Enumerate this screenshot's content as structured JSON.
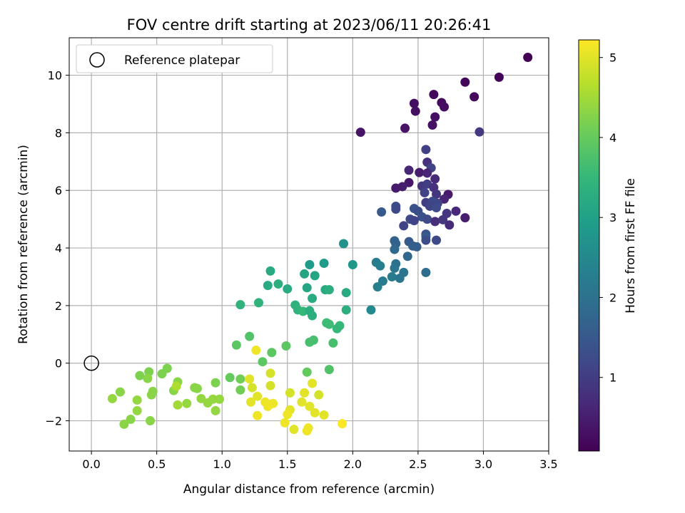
{
  "chart_data": {
    "type": "scatter",
    "title": "FOV centre drift starting at 2023/06/11 20:26:41",
    "xlabel": "Angular distance from reference (arcmin)",
    "ylabel": "Rotation from reference (arcmin)",
    "xlim": [
      -0.17,
      3.5
    ],
    "ylim": [
      -3.05,
      11.3
    ],
    "xticks": [
      0.0,
      0.5,
      1.0,
      1.5,
      2.0,
      2.5,
      3.0,
      3.5
    ],
    "xtick_labels": [
      "0.0",
      "0.5",
      "1.0",
      "1.5",
      "2.0",
      "2.5",
      "3.0",
      "3.5"
    ],
    "yticks": [
      -2,
      0,
      2,
      4,
      6,
      8,
      10
    ],
    "ytick_labels": [
      "−2",
      "0",
      "2",
      "4",
      "6",
      "8",
      "10"
    ],
    "grid": true,
    "legend": {
      "placement": "top-left",
      "entries": [
        "Reference platepar"
      ]
    },
    "reference_point": {
      "x": 0.0,
      "y": 0.0,
      "label": "Reference platepar"
    },
    "colorbar": {
      "label": "Hours from first FF file",
      "colormap": "viridis",
      "range": [
        0.08,
        5.22
      ],
      "ticks": [
        1,
        2,
        3,
        4,
        5
      ],
      "tick_labels": [
        "1",
        "2",
        "3",
        "4",
        "5"
      ]
    },
    "points": [
      [
        3.34,
        10.62,
        0.1
      ],
      [
        3.12,
        9.93,
        0.12
      ],
      [
        2.86,
        9.76,
        0.15
      ],
      [
        2.93,
        9.25,
        0.18
      ],
      [
        2.62,
        9.33,
        0.2
      ],
      [
        2.68,
        9.05,
        0.22
      ],
      [
        2.7,
        8.9,
        0.25
      ],
      [
        2.47,
        9.02,
        0.26
      ],
      [
        2.48,
        8.75,
        0.28
      ],
      [
        2.63,
        8.55,
        0.3
      ],
      [
        2.61,
        8.27,
        0.32
      ],
      [
        2.4,
        8.16,
        0.35
      ],
      [
        2.06,
        8.02,
        0.37
      ],
      [
        2.97,
        8.03,
        0.95
      ],
      [
        2.56,
        7.42,
        1.05
      ],
      [
        2.57,
        6.98,
        0.8
      ],
      [
        2.6,
        6.78,
        1.1
      ],
      [
        2.43,
        6.7,
        0.6
      ],
      [
        2.51,
        6.62,
        0.5
      ],
      [
        2.57,
        6.6,
        0.6
      ],
      [
        2.63,
        6.4,
        0.7
      ],
      [
        2.43,
        6.27,
        0.4
      ],
      [
        2.38,
        6.13,
        0.5
      ],
      [
        2.33,
        6.08,
        0.45
      ],
      [
        2.53,
        6.15,
        0.9
      ],
      [
        2.57,
        6.22,
        1.0
      ],
      [
        2.62,
        6.1,
        0.8
      ],
      [
        2.55,
        5.92,
        1.1
      ],
      [
        2.64,
        5.87,
        0.9
      ],
      [
        2.73,
        5.86,
        0.45
      ],
      [
        2.7,
        5.7,
        0.6
      ],
      [
        2.56,
        5.58,
        1.0
      ],
      [
        2.61,
        5.62,
        1.2
      ],
      [
        2.65,
        5.55,
        1.15
      ],
      [
        2.59,
        5.45,
        1.1
      ],
      [
        2.64,
        5.4,
        1.25
      ],
      [
        2.33,
        5.45,
        1.3
      ],
      [
        2.33,
        5.35,
        1.2
      ],
      [
        2.47,
        5.37,
        1.4
      ],
      [
        2.5,
        5.28,
        1.3
      ],
      [
        2.22,
        5.25,
        1.5
      ],
      [
        2.44,
        5.0,
        1.2
      ],
      [
        2.53,
        5.08,
        1.35
      ],
      [
        2.57,
        5.0,
        1.25
      ],
      [
        2.47,
        4.95,
        1.1
      ],
      [
        2.63,
        4.92,
        0.75
      ],
      [
        2.72,
        5.2,
        0.9
      ],
      [
        2.79,
        5.28,
        0.65
      ],
      [
        2.86,
        5.05,
        0.5
      ],
      [
        2.69,
        4.98,
        0.9
      ],
      [
        2.74,
        4.8,
        0.7
      ],
      [
        2.39,
        4.77,
        1.1
      ],
      [
        2.56,
        4.48,
        1.4
      ],
      [
        2.56,
        4.4,
        1.55
      ],
      [
        2.56,
        4.27,
        1.3
      ],
      [
        2.64,
        4.27,
        1.2
      ],
      [
        2.43,
        4.22,
        1.5
      ],
      [
        2.32,
        4.25,
        1.7
      ],
      [
        2.33,
        4.15,
        1.7
      ],
      [
        2.46,
        4.07,
        1.6
      ],
      [
        2.49,
        4.04,
        1.6
      ],
      [
        2.32,
        3.95,
        1.8
      ],
      [
        2.42,
        3.71,
        1.8
      ],
      [
        2.33,
        3.45,
        2.0
      ],
      [
        2.32,
        3.3,
        2.1
      ],
      [
        2.18,
        3.5,
        2.2
      ],
      [
        2.21,
        3.38,
        2.3
      ],
      [
        2.39,
        3.15,
        2.1
      ],
      [
        2.56,
        3.15,
        1.9
      ],
      [
        2.3,
        3.0,
        2.2
      ],
      [
        2.36,
        2.95,
        2.1
      ],
      [
        2.23,
        2.85,
        2.2
      ],
      [
        2.19,
        2.65,
        2.3
      ],
      [
        2.14,
        1.85,
        2.5
      ],
      [
        1.93,
        4.15,
        2.7
      ],
      [
        2.0,
        3.42,
        2.8
      ],
      [
        1.78,
        3.47,
        2.9
      ],
      [
        1.67,
        3.42,
        2.9
      ],
      [
        1.63,
        3.1,
        3.1
      ],
      [
        1.71,
        3.04,
        3.1
      ],
      [
        1.37,
        3.2,
        3.2
      ],
      [
        1.35,
        2.7,
        3.2
      ],
      [
        1.43,
        2.75,
        3.3
      ],
      [
        1.65,
        2.62,
        3.1
      ],
      [
        1.5,
        2.58,
        3.2
      ],
      [
        1.79,
        2.55,
        3.2
      ],
      [
        1.82,
        2.55,
        3.3
      ],
      [
        1.95,
        2.45,
        3.2
      ],
      [
        1.69,
        2.25,
        3.2
      ],
      [
        1.14,
        2.03,
        3.4
      ],
      [
        1.28,
        2.1,
        3.4
      ],
      [
        1.56,
        2.02,
        3.4
      ],
      [
        1.58,
        1.85,
        3.4
      ],
      [
        1.62,
        1.8,
        3.5
      ],
      [
        1.67,
        1.82,
        3.3
      ],
      [
        1.69,
        1.65,
        3.3
      ],
      [
        1.95,
        1.85,
        3.3
      ],
      [
        1.8,
        1.4,
        3.6
      ],
      [
        1.82,
        1.35,
        3.6
      ],
      [
        1.88,
        1.2,
        3.5
      ],
      [
        1.9,
        1.3,
        3.5
      ],
      [
        1.21,
        0.93,
        3.8
      ],
      [
        1.11,
        0.63,
        3.9
      ],
      [
        1.38,
        0.37,
        3.9
      ],
      [
        1.49,
        0.6,
        3.9
      ],
      [
        1.7,
        0.8,
        3.7
      ],
      [
        1.67,
        0.73,
        3.7
      ],
      [
        1.85,
        0.7,
        3.7
      ],
      [
        1.31,
        0.05,
        3.9
      ],
      [
        1.82,
        -0.22,
        3.8
      ],
      [
        1.65,
        -0.31,
        4.0
      ],
      [
        1.06,
        -0.5,
        4.0
      ],
      [
        1.14,
        -0.55,
        4.1
      ],
      [
        1.14,
        -0.93,
        4.1
      ],
      [
        0.58,
        -0.18,
        4.2
      ],
      [
        0.44,
        -0.3,
        4.2
      ],
      [
        0.37,
        -0.43,
        4.2
      ],
      [
        0.54,
        -0.37,
        4.2
      ],
      [
        0.43,
        -0.53,
        4.3
      ],
      [
        0.66,
        -0.65,
        4.3
      ],
      [
        0.63,
        -0.95,
        4.3
      ],
      [
        0.47,
        -0.98,
        4.3
      ],
      [
        0.46,
        -1.1,
        4.3
      ],
      [
        0.95,
        -0.68,
        4.2
      ],
      [
        0.79,
        -0.85,
        4.3
      ],
      [
        0.81,
        -0.88,
        4.3
      ],
      [
        0.93,
        -1.25,
        4.4
      ],
      [
        0.98,
        -1.25,
        4.4
      ],
      [
        0.84,
        -1.23,
        4.4
      ],
      [
        0.89,
        -1.38,
        4.4
      ],
      [
        0.73,
        -1.4,
        4.4
      ],
      [
        0.66,
        -1.45,
        4.5
      ],
      [
        0.95,
        -1.65,
        4.4
      ],
      [
        0.22,
        -1.0,
        4.3
      ],
      [
        0.16,
        -1.23,
        4.4
      ],
      [
        0.35,
        -1.28,
        4.4
      ],
      [
        0.35,
        -1.65,
        4.4
      ],
      [
        0.3,
        -1.95,
        4.3
      ],
      [
        0.25,
        -2.12,
        4.3
      ],
      [
        0.45,
        -2.0,
        4.3
      ],
      [
        0.65,
        -0.8,
        4.6
      ],
      [
        1.26,
        0.45,
        5.1
      ],
      [
        1.21,
        -0.55,
        5.0
      ],
      [
        1.37,
        -0.35,
        4.9
      ],
      [
        1.23,
        -0.85,
        4.9
      ],
      [
        1.37,
        -0.78,
        4.9
      ],
      [
        1.27,
        -1.15,
        5.0
      ],
      [
        1.22,
        -1.35,
        5.0
      ],
      [
        1.33,
        -1.35,
        5.1
      ],
      [
        1.36,
        -1.43,
        5.1
      ],
      [
        1.39,
        -1.4,
        5.1
      ],
      [
        1.35,
        -1.5,
        5.1
      ],
      [
        1.27,
        -1.82,
        5.1
      ],
      [
        1.52,
        -1.03,
        4.9
      ],
      [
        1.63,
        -1.03,
        5.0
      ],
      [
        1.69,
        -0.7,
        5.0
      ],
      [
        1.74,
        -1.1,
        4.9
      ],
      [
        1.61,
        -1.35,
        5.0
      ],
      [
        1.67,
        -1.5,
        5.0
      ],
      [
        1.52,
        -1.62,
        5.0
      ],
      [
        1.5,
        -1.78,
        5.1
      ],
      [
        1.48,
        -2.07,
        5.1
      ],
      [
        1.71,
        -1.72,
        5.0
      ],
      [
        1.78,
        -1.8,
        5.0
      ],
      [
        1.55,
        -2.3,
        5.0
      ],
      [
        1.65,
        -2.35,
        5.1
      ],
      [
        1.66,
        -2.25,
        5.1
      ],
      [
        1.92,
        -2.1,
        5.2
      ]
    ]
  }
}
